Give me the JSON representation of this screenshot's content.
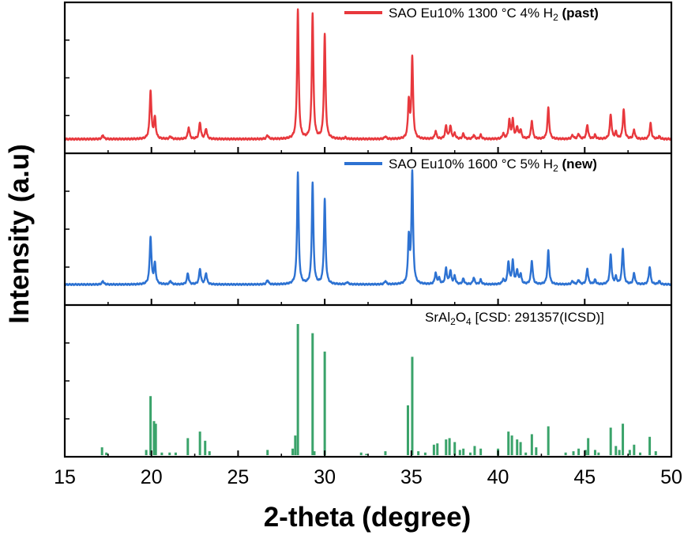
{
  "chart_data": {
    "type": "line",
    "xlabel": "2-theta (degree)",
    "ylabel": "Intensity (a.u)",
    "xlim": [
      15,
      50
    ],
    "x_ticks": [
      "15",
      "20",
      "25",
      "30",
      "35",
      "40",
      "45",
      "50"
    ],
    "grid": false,
    "layout": "three vertically stacked panels sharing the x axis; y ticks unlabeled",
    "legend_placement": "top-right of each panel",
    "series": [
      {
        "panel": 1,
        "label_parts": [
          "SAO Eu10% 1300 °C 4% H",
          "2",
          " ",
          "(past)"
        ],
        "color": "#e8383d",
        "kind": "line",
        "peaks": [
          [
            17.2,
            0.03,
            0.06
          ],
          [
            19.95,
            0.37,
            0.06
          ],
          [
            20.2,
            0.16,
            0.06
          ],
          [
            21.1,
            0.02,
            0.06
          ],
          [
            22.15,
            0.09,
            0.06
          ],
          [
            22.8,
            0.13,
            0.06
          ],
          [
            23.15,
            0.08,
            0.06
          ],
          [
            26.7,
            0.03,
            0.06
          ],
          [
            28.45,
            1.0,
            0.055
          ],
          [
            29.3,
            0.97,
            0.055
          ],
          [
            30.0,
            0.81,
            0.055
          ],
          [
            31.2,
            0.01,
            0.06
          ],
          [
            33.5,
            0.02,
            0.06
          ],
          [
            34.85,
            0.29,
            0.055
          ],
          [
            35.05,
            0.63,
            0.055
          ],
          [
            36.4,
            0.06,
            0.06
          ],
          [
            37.0,
            0.1,
            0.06
          ],
          [
            37.25,
            0.1,
            0.06
          ],
          [
            37.5,
            0.04,
            0.06
          ],
          [
            38.0,
            0.04,
            0.06
          ],
          [
            38.6,
            0.03,
            0.06
          ],
          [
            39.0,
            0.03,
            0.06
          ],
          [
            40.3,
            0.04,
            0.06
          ],
          [
            40.65,
            0.14,
            0.06
          ],
          [
            40.85,
            0.14,
            0.06
          ],
          [
            41.1,
            0.09,
            0.06
          ],
          [
            41.3,
            0.07,
            0.06
          ],
          [
            41.95,
            0.14,
            0.06
          ],
          [
            42.9,
            0.24,
            0.06
          ],
          [
            44.3,
            0.03,
            0.06
          ],
          [
            44.65,
            0.04,
            0.06
          ],
          [
            45.15,
            0.11,
            0.06
          ],
          [
            45.6,
            0.03,
            0.06
          ],
          [
            46.5,
            0.19,
            0.06
          ],
          [
            46.8,
            0.05,
            0.06
          ],
          [
            47.25,
            0.23,
            0.06
          ],
          [
            47.85,
            0.07,
            0.06
          ],
          [
            48.8,
            0.12,
            0.06
          ],
          [
            49.3,
            0.02,
            0.06
          ]
        ]
      },
      {
        "panel": 2,
        "label_parts": [
          "SAO Eu10% 1600 °C 5% H",
          "2",
          " ",
          "(new)"
        ],
        "color": "#2d72d2",
        "kind": "line",
        "peaks": [
          [
            17.2,
            0.03,
            0.06
          ],
          [
            19.95,
            0.42,
            0.06
          ],
          [
            20.2,
            0.18,
            0.06
          ],
          [
            21.1,
            0.03,
            0.06
          ],
          [
            22.1,
            0.1,
            0.06
          ],
          [
            22.8,
            0.14,
            0.06
          ],
          [
            23.15,
            0.1,
            0.06
          ],
          [
            26.7,
            0.04,
            0.06
          ],
          [
            28.45,
            1.0,
            0.055
          ],
          [
            29.3,
            0.91,
            0.055
          ],
          [
            30.0,
            0.76,
            0.055
          ],
          [
            31.3,
            0.02,
            0.06
          ],
          [
            33.5,
            0.03,
            0.06
          ],
          [
            34.85,
            0.41,
            0.055
          ],
          [
            35.05,
            1.0,
            0.055
          ],
          [
            36.4,
            0.1,
            0.06
          ],
          [
            36.6,
            0.05,
            0.06
          ],
          [
            37.0,
            0.14,
            0.06
          ],
          [
            37.25,
            0.12,
            0.06
          ],
          [
            37.5,
            0.07,
            0.06
          ],
          [
            38.0,
            0.05,
            0.06
          ],
          [
            38.6,
            0.06,
            0.06
          ],
          [
            39.0,
            0.04,
            0.06
          ],
          [
            40.3,
            0.04,
            0.06
          ],
          [
            40.6,
            0.2,
            0.06
          ],
          [
            40.85,
            0.2,
            0.06
          ],
          [
            41.1,
            0.12,
            0.06
          ],
          [
            41.3,
            0.09,
            0.06
          ],
          [
            41.95,
            0.21,
            0.06
          ],
          [
            42.9,
            0.3,
            0.06
          ],
          [
            44.3,
            0.03,
            0.06
          ],
          [
            44.65,
            0.04,
            0.06
          ],
          [
            45.15,
            0.14,
            0.06
          ],
          [
            45.6,
            0.04,
            0.06
          ],
          [
            46.5,
            0.27,
            0.06
          ],
          [
            46.8,
            0.06,
            0.06
          ],
          [
            47.2,
            0.32,
            0.06
          ],
          [
            47.85,
            0.1,
            0.06
          ],
          [
            48.75,
            0.16,
            0.06
          ],
          [
            49.3,
            0.03,
            0.06
          ]
        ]
      },
      {
        "panel": 3,
        "label_parts": [
          "SrAl",
          "2",
          "O",
          "4",
          " [CSD: 291357(ICSD)]"
        ],
        "color": "#3aa36a",
        "kind": "stick",
        "peaks": [
          [
            17.15,
            0.06
          ],
          [
            17.4,
            0.02
          ],
          [
            19.7,
            0.04
          ],
          [
            19.95,
            0.45
          ],
          [
            20.15,
            0.26
          ],
          [
            20.25,
            0.24
          ],
          [
            20.6,
            0.02
          ],
          [
            21.05,
            0.02
          ],
          [
            21.4,
            0.02
          ],
          [
            22.1,
            0.13
          ],
          [
            22.8,
            0.18
          ],
          [
            23.1,
            0.11
          ],
          [
            23.35,
            0.03
          ],
          [
            26.7,
            0.04
          ],
          [
            28.15,
            0.05
          ],
          [
            28.3,
            0.15
          ],
          [
            28.45,
            1.0
          ],
          [
            29.3,
            0.93
          ],
          [
            29.4,
            0.03
          ],
          [
            30.0,
            0.79
          ],
          [
            32.1,
            0.02
          ],
          [
            32.4,
            0.01
          ],
          [
            33.5,
            0.03
          ],
          [
            34.8,
            0.38
          ],
          [
            35.05,
            0.75
          ],
          [
            35.4,
            0.03
          ],
          [
            35.8,
            0.02
          ],
          [
            36.3,
            0.08
          ],
          [
            36.5,
            0.09
          ],
          [
            37.0,
            0.12
          ],
          [
            37.2,
            0.13
          ],
          [
            37.5,
            0.1
          ],
          [
            37.8,
            0.04
          ],
          [
            38.0,
            0.05
          ],
          [
            38.4,
            0.02
          ],
          [
            38.65,
            0.07
          ],
          [
            39.0,
            0.05
          ],
          [
            40.0,
            0.05
          ],
          [
            40.6,
            0.18
          ],
          [
            40.8,
            0.15
          ],
          [
            41.1,
            0.12
          ],
          [
            41.3,
            0.1
          ],
          [
            41.6,
            0.02
          ],
          [
            41.95,
            0.16
          ],
          [
            42.2,
            0.06
          ],
          [
            42.9,
            0.22
          ],
          [
            43.9,
            0.02
          ],
          [
            44.35,
            0.03
          ],
          [
            44.65,
            0.05
          ],
          [
            45.05,
            0.04
          ],
          [
            45.2,
            0.13
          ],
          [
            45.6,
            0.04
          ],
          [
            45.8,
            0.02
          ],
          [
            46.5,
            0.21
          ],
          [
            46.8,
            0.07
          ],
          [
            47.0,
            0.04
          ],
          [
            47.2,
            0.24
          ],
          [
            47.6,
            0.04
          ],
          [
            47.85,
            0.08
          ],
          [
            48.2,
            0.02
          ],
          [
            48.75,
            0.14
          ],
          [
            49.1,
            0.03
          ]
        ]
      }
    ]
  }
}
